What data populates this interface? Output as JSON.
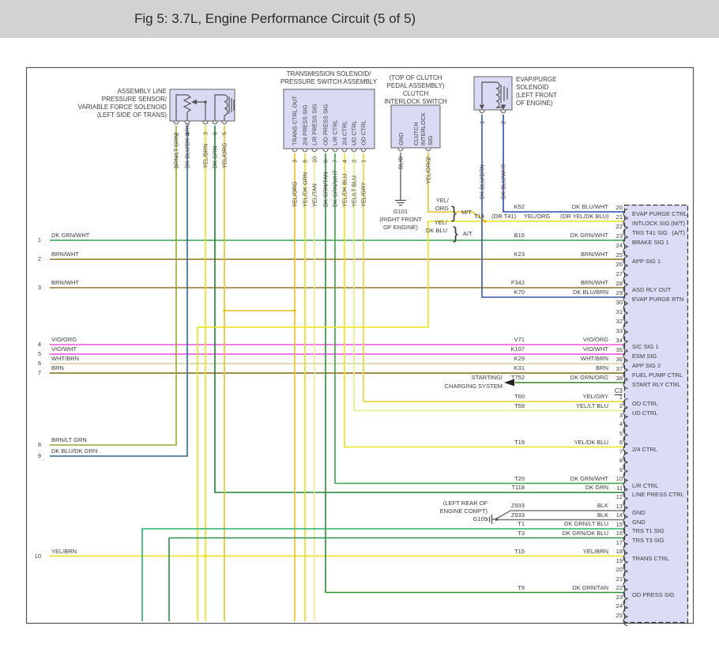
{
  "title": "Fig 5: 3.7L, Engine Performance Circuit (5 of 5)",
  "ui_colors": {
    "titlebar_bg": "#d2d2d2",
    "box_fill": "#dadaf5",
    "box_border": "#606060",
    "connector_fill": "#dcdcf7",
    "diagram_border": "#555555"
  },
  "wire_colors": {
    "DK_GRN_WHT": "#3da04b",
    "BRN_WHT": "#8f742a",
    "VIO_ORG": "#f052d8",
    "VIO_WHT": "#ea46e8",
    "WHT_BRN": "#d8cda4",
    "BRN": "#8a6414",
    "BRN_LT_GRN": "#9aa832",
    "DK_BLU_DK_GRN": "#33658f",
    "YEL_BRN": "#eedd1c",
    "DK_GRN": "#1f8231",
    "YEL_ORG": "#e8c226",
    "YEL_DK_GRN": "#dfdf22",
    "YEL_TAN": "#efe98e",
    "DK_GRN_TAN": "#2f8f37",
    "YEL_DK_BLU": "#ece31a",
    "YEL_LT_BLU": "#e2ec82",
    "YEL_GRY": "#e5d52e",
    "BLK": "#787878",
    "DK_BLU_BRN": "#3a57a8",
    "DK_BLU_WHT": "#2a4cb4",
    "DK_GRN_LT_BLU": "#28b26e",
    "DK_GRN_DK_BLU": "#2f9150",
    "DK_GRN_ORG": "#40801f"
  },
  "components": {
    "alps": {
      "name_lines": [
        "ASSEMBLY LINE",
        "PRESSURE SENSOR/",
        "VARIABLE FORCE SOLENOID",
        "(LEFT SIDE OF TRANS)"
      ],
      "pins": [
        {
          "num": "2",
          "wire": "BRN/LT GRN",
          "color": "BRN_LT_GRN"
        },
        {
          "num": "4",
          "wire": "DK BLU/DK GRN",
          "color": "DK_BLU_DK_GRN"
        },
        {
          "num": "3",
          "wire": "YEL/BRN",
          "color": "YEL_BRN"
        },
        {
          "num": "6",
          "wire": "DK GRN",
          "color": "DK_GRN"
        },
        {
          "num": "5",
          "wire": "YEL/ORG",
          "color": "YEL_ORG"
        }
      ]
    },
    "trans": {
      "name_lines": [
        "TRANSMISSION SOLENOID/",
        "PRESSURE SWITCH ASSEMBLY"
      ],
      "signals": [
        "TRANS CTRL OUT",
        "2/4 PRESS SIG",
        "L/R PRESS SIG",
        "OD PRESS SIG",
        "L/R CTRL",
        "2/4 CTRL",
        "UD CTRL",
        "OD CTRL"
      ],
      "pins": [
        {
          "num": "3",
          "wire": "YEL/ORG",
          "color": "YEL_ORG"
        },
        {
          "num": "5",
          "wire": "YEL/DK GRN",
          "color": "YEL_DK_GRN"
        },
        {
          "num": "10",
          "wire": "YEL/TAN",
          "color": "YEL_TAN"
        },
        {
          "num": "6",
          "wire": "DK GRN/TAN",
          "color": "DK_GRN_TAN"
        },
        {
          "num": "7",
          "wire": "DK GRN/WHT",
          "color": "DK_GRN_WHT"
        },
        {
          "num": "4",
          "wire": "YEL/DK BLU",
          "color": "YEL_DK_BLU"
        },
        {
          "num": "2",
          "wire": "YEL/LT BLU",
          "color": "YEL_LT_BLU"
        },
        {
          "num": "1",
          "wire": "YEL/GRY",
          "color": "YEL_GRY"
        }
      ]
    },
    "clutch": {
      "name_lines": [
        "(TOP OF CLUTCH",
        "PEDAL ASSEMBLY)",
        "CLUTCH",
        "INTERLOCK SWITCH"
      ],
      "signals": [
        "GND",
        "CLUTCH",
        "INTERLOCK",
        "SIG"
      ],
      "pins": [
        {
          "num": "3",
          "wire": "BLK",
          "color": "BLK"
        },
        {
          "num": "2",
          "wire": "YEL/ORG",
          "color": "YEL_ORG"
        }
      ]
    },
    "evap": {
      "name_lines": [
        "EVAP/PURGE",
        "SOLENOID",
        "(LEFT FRONT",
        "OF ENGINE)"
      ],
      "pins": [
        {
          "num": "1",
          "wire": "DK BLU/BRN",
          "color": "DK_BLU_BRN"
        },
        {
          "num": "2",
          "wire": "DK BLU/WHT",
          "color": "DK_BLU_WHT"
        }
      ]
    }
  },
  "grounds": {
    "g101": {
      "id": "G101",
      "loc_lines": [
        "(RIGHT FRONT",
        "OF ENGINE)"
      ]
    },
    "g105": {
      "id": "G105",
      "loc_lines": [
        "(LEFT REAR OF",
        "ENGINE COMPT)"
      ]
    }
  },
  "left_wires": [
    {
      "num": "1",
      "label": "DK GRN/WHT",
      "color": "DK_GRN_WHT"
    },
    {
      "num": "2",
      "label": "BRN/WHT",
      "color": "BRN_WHT"
    },
    {
      "num": "3",
      "label": "BRN/WHT",
      "color": "BRN_WHT"
    },
    {
      "num": "4",
      "label": "VIO/ORG",
      "color": "VIO_ORG"
    },
    {
      "num": "5",
      "label": "VIO/WHT",
      "color": "VIO_WHT"
    },
    {
      "num": "6",
      "label": "WHT/BRN",
      "color": "WHT_BRN"
    },
    {
      "num": "7",
      "label": "BRN",
      "color": "BRN"
    },
    {
      "num": "8",
      "label": "BRN/LT GRN",
      "color": "BRN_LT_GRN"
    },
    {
      "num": "9",
      "label": "DK BLU/DK GRN",
      "color": "DK_BLU_DK_GRN"
    },
    {
      "num": "10",
      "label": "YEL/BRN",
      "color": "YEL_BRN"
    }
  ],
  "junction": {
    "id": "T14",
    "mt_wire_lines": [
      "YEL/",
      "ORG"
    ],
    "mt_tag": "M/T",
    "at_wire_lines": [
      "YEL/",
      "DK BLU"
    ],
    "at_tag": "A/T"
  },
  "offpage": {
    "lines": [
      "STARTING/",
      "CHARGING SYSTEM"
    ]
  },
  "connector": {
    "c3_label": "C3",
    "rows_c1": [
      {
        "pin": "20",
        "circuit": "K52",
        "wire": "DK BLU/WHT",
        "label": "EVAP PURGE CTRL"
      },
      {
        "pin": "21",
        "pre": "(OR T41)",
        "wire": "YEL/ORG",
        "alt": "(OR YEL/DK BLU)",
        "label": "INTLOCK SIG",
        "tag": "(M/T)"
      },
      {
        "pin": "22",
        "label": "TRS T41 SIG",
        "tag": "(A/T)"
      },
      {
        "pin": "23",
        "circuit": "B15",
        "wire": "DK GRN/WHT",
        "label": "BRAKE SIG 1"
      },
      {
        "pin": "24"
      },
      {
        "pin": "25",
        "circuit": "K23",
        "wire": "BRN/WHT",
        "label": "APP SIG 1"
      },
      {
        "pin": "26"
      },
      {
        "pin": "27"
      },
      {
        "pin": "28",
        "circuit": "F342",
        "wire": "BRN/WHT",
        "label": "ASD RLY OUT"
      },
      {
        "pin": "29",
        "circuit": "K70",
        "wire": "DK BLU/BRN",
        "label": "EVAP PURGE RTN"
      },
      {
        "pin": "30"
      },
      {
        "pin": "31"
      },
      {
        "pin": "32"
      },
      {
        "pin": "33"
      },
      {
        "pin": "34",
        "circuit": "V71",
        "wire": "VIO/ORG",
        "label": "S/C SIG 1"
      },
      {
        "pin": "35",
        "circuit": "K107",
        "wire": "VIO/WHT",
        "label": "ESM SIG"
      },
      {
        "pin": "36",
        "circuit": "K29",
        "wire": "WHT/BRN",
        "label": "APP SIG 2"
      },
      {
        "pin": "37",
        "circuit": "K31",
        "wire": "BRN",
        "label": "FUEL PUMP CTRL"
      },
      {
        "pin": "38",
        "circuit": "T752",
        "wire": "DK GRN/ORG",
        "label": "START RLY CTRL"
      }
    ],
    "rows_c3": [
      {
        "pin": "1",
        "circuit": "T60",
        "wire": "YEL/GRY",
        "label": "OD CTRL"
      },
      {
        "pin": "2",
        "circuit": "T59",
        "wire": "YEL/LT BLU",
        "label": "UD CTRL"
      },
      {
        "pin": "3"
      },
      {
        "pin": "4"
      },
      {
        "pin": "5"
      },
      {
        "pin": "6",
        "circuit": "T19",
        "wire": "YEL/DK BLU",
        "label": "2/4 CTRL"
      },
      {
        "pin": "7"
      },
      {
        "pin": "8"
      },
      {
        "pin": "9"
      },
      {
        "pin": "10",
        "circuit": "T20",
        "wire": "DK GRN/WHT",
        "label": "L/R CTRL"
      },
      {
        "pin": "11",
        "circuit": "T118",
        "wire": "DK GRN",
        "label": "LINE PRESS CTRL"
      },
      {
        "pin": "12"
      },
      {
        "pin": "13",
        "circuit": "Z933",
        "wire": "BLK",
        "label": "GND"
      },
      {
        "pin": "14",
        "circuit": "Z933",
        "wire": "BLK",
        "label": "GND"
      },
      {
        "pin": "15",
        "circuit": "T1",
        "wire": "DK GRN/LT BLU",
        "label": "TRS T1 SIG"
      },
      {
        "pin": "16",
        "circuit": "T3",
        "wire": "DK GRN/DK BLU",
        "label": "TRS T3 SIG"
      },
      {
        "pin": "17"
      },
      {
        "pin": "18",
        "circuit": "T15",
        "wire": "YEL/BRN",
        "label": "TRANS CTRL"
      },
      {
        "pin": "19"
      },
      {
        "pin": "20"
      },
      {
        "pin": "21"
      },
      {
        "pin": "22",
        "circuit": "T9",
        "wire": "DK GRN/TAN",
        "label": "OD PRESS SIG"
      },
      {
        "pin": "23"
      },
      {
        "pin": "24"
      },
      {
        "pin": "25"
      }
    ]
  }
}
